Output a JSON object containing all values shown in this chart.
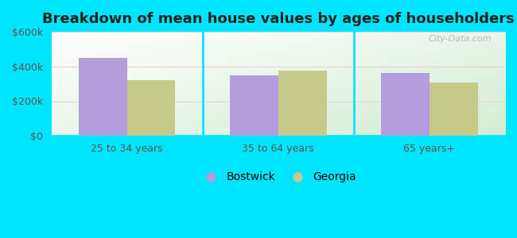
{
  "title": "Breakdown of mean house values by ages of householders",
  "categories": [
    "25 to 34 years",
    "35 to 64 years",
    "65 years+"
  ],
  "bostwick_values": [
    450000,
    350000,
    362000
  ],
  "georgia_values": [
    320000,
    375000,
    308000
  ],
  "bostwick_color": "#b39ddb",
  "georgia_color": "#c5c98a",
  "background_outer": "#00e5ff",
  "ylim": [
    0,
    600000
  ],
  "yticks": [
    0,
    200000,
    400000,
    600000
  ],
  "ytick_labels": [
    "$0",
    "$200k",
    "$400k",
    "$600k"
  ],
  "legend_labels": [
    "Bostwick",
    "Georgia"
  ],
  "bar_width": 0.32,
  "title_fontsize": 13,
  "tick_fontsize": 9,
  "legend_fontsize": 10,
  "watermark_text": "City-Data.com"
}
